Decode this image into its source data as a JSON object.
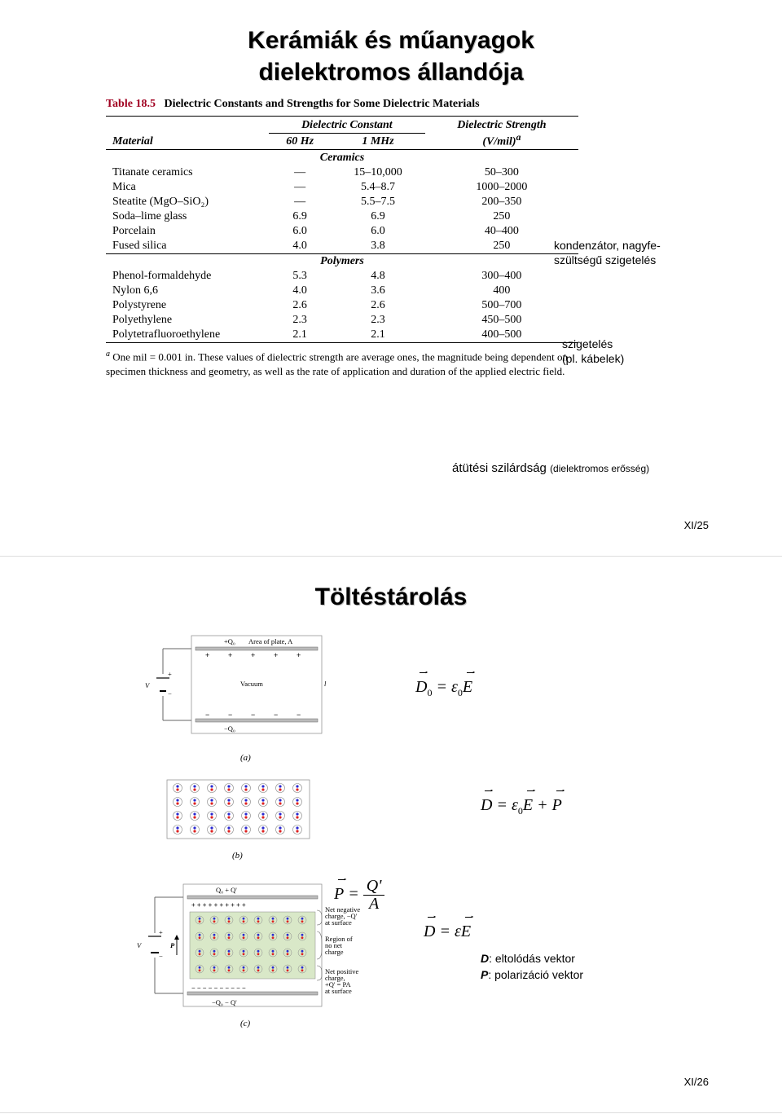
{
  "slide1": {
    "title_line1": "Kerámiák és műanyagok",
    "title_line2": "dielektromos állandója",
    "table_label": "Table 18.5",
    "table_desc": "Dielectric Constants and Strengths for Some Dielectric Materials",
    "col_material": "Material",
    "col_dc_group": "Dielectric Constant",
    "col_60hz": "60 Hz",
    "col_1mhz": "1 MHz",
    "col_strength_l1": "Dielectric Strength",
    "col_strength_l2": "(V/mil)",
    "col_strength_sup": "a",
    "sect_ceramics": "Ceramics",
    "sect_polymers": "Polymers",
    "rows_ceramics": [
      {
        "m": "Titanate ceramics",
        "a": "—",
        "b": "15–10,000",
        "c": "50–300"
      },
      {
        "m": "Mica",
        "a": "—",
        "b": "5.4–8.7",
        "c": "1000–2000"
      },
      {
        "m": "Steatite (MgO–SiO₂)",
        "a": "—",
        "b": "5.5–7.5",
        "c": "200–350"
      },
      {
        "m": "Soda–lime glass",
        "a": "6.9",
        "b": "6.9",
        "c": "250"
      },
      {
        "m": "Porcelain",
        "a": "6.0",
        "b": "6.0",
        "c": "40–400"
      },
      {
        "m": "Fused silica",
        "a": "4.0",
        "b": "3.8",
        "c": "250"
      }
    ],
    "rows_polymers": [
      {
        "m": "Phenol-formaldehyde",
        "a": "5.3",
        "b": "4.8",
        "c": "300–400"
      },
      {
        "m": "Nylon 6,6",
        "a": "4.0",
        "b": "3.6",
        "c": "400"
      },
      {
        "m": "Polystyrene",
        "a": "2.6",
        "b": "2.6",
        "c": "500–700"
      },
      {
        "m": "Polyethylene",
        "a": "2.3",
        "b": "2.3",
        "c": "450–500"
      },
      {
        "m": "Polytetrafluoroethylene",
        "a": "2.1",
        "b": "2.1",
        "c": "400–500"
      }
    ],
    "footnote": "One mil = 0.001 in. These values of dielectric strength are average ones, the magnitude being dependent on specimen thickness and geometry, as well as the rate of application and duration of the applied electric field.",
    "footnote_mark": "a",
    "annot1_l1": "kondenzátor, nagyfe-",
    "annot1_l2": "szültségű szigetelés",
    "annot2_l1": "szigetelés",
    "annot2_l2": "(pl. kábelek)",
    "annot3_main": "átütési szilárdság ",
    "annot3_paren": "(dielektromos erősség)",
    "pagenum": "XI/25"
  },
  "slide2": {
    "title": "Töltéstárolás",
    "diag_a": {
      "q0_top": "+Q₀",
      "area": "Area of plate, A",
      "vacuum": "Vacuum",
      "v": "V",
      "l": "l",
      "q0_bot": "−Q₀",
      "cap": "(a)",
      "charge_top_color": "#000",
      "charge_bot_color": "#000"
    },
    "diag_b": {
      "cap": "(b)",
      "dipole_pos": "#d22",
      "dipole_neg": "#2a2ad0"
    },
    "diag_c": {
      "top_label": "Q₀ + Q'",
      "v": "V",
      "p": "P",
      "note1": "Net negative\ncharge, −Q'\nat surface",
      "note2": "Region of\nno net\ncharge",
      "note3": "Net positive\ncharge,\n+Q' = PA\nat surface",
      "bot_label": "−Q₀ − Q'",
      "cap": "(c)",
      "region_fill": "#d9e8c8"
    },
    "eq1_D": "D",
    "eq1_sub0": "0",
    "eq1_eq": " = ",
    "eq1_eps": "ε",
    "eq1_E": "E",
    "eq2_D": "D",
    "eq2_eq": " = ",
    "eq2_eps": "ε",
    "eq2_sub0": "0",
    "eq2_E": "E",
    "eq2_plus": " + ",
    "eq2_P": "P",
    "eq3_P": "P",
    "eq3_eq": " = ",
    "eq3_Q": "Q'",
    "eq3_A": "A",
    "eq4_D": "D",
    "eq4_eq": " = ",
    "eq4_eps": "ε",
    "eq4_E": "E",
    "legend_D": "D",
    "legend_D_txt": ": eltolódás vektor",
    "legend_P": "P",
    "legend_P_txt": ": polarizáció vektor",
    "pagenum": "XI/26",
    "colors": {
      "plate_stroke": "#808080",
      "text_small": "#555"
    }
  }
}
